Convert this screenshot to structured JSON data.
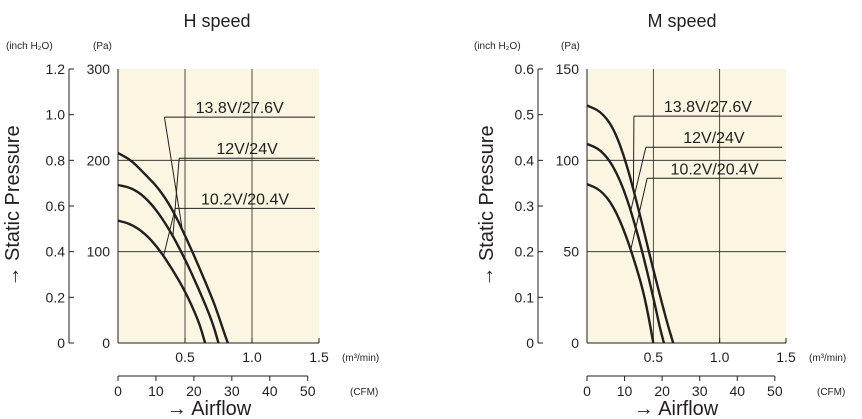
{
  "figure": {
    "ylabel": "Static Pressure",
    "xlabel": "Airflow",
    "arrow_glyph": "→",
    "y_unit_inch": "(inch H₂O)",
    "y_unit_pa": "(Pa)",
    "x_unit_m3": "(m³/min)",
    "x_unit_cfm": "(CFM)"
  },
  "colors": {
    "plot_background": "#faf6e1",
    "line": "#231f20",
    "text": "#231f20"
  },
  "chart_data": [
    {
      "type": "line",
      "title": "H speed",
      "xlabel": "Airflow",
      "ylabel": "Static Pressure",
      "xlim": [
        0,
        1.5
      ],
      "ylim": [
        0,
        300
      ],
      "x_ticks_m3min": [
        "",
        "0.5",
        "1.0",
        "1.5"
      ],
      "x_tick_values_m3min": [
        0,
        0.5,
        1.0,
        1.5
      ],
      "x_ticks_cfm": [
        "0",
        "10",
        "20",
        "30",
        "40",
        "50"
      ],
      "x_tick_values_cfm": [
        0,
        10,
        20,
        30,
        40,
        50
      ],
      "y_ticks_pa": [
        "0",
        "100",
        "200",
        "300"
      ],
      "y_tick_values_pa": [
        0,
        100,
        200,
        300
      ],
      "y_ticks_inch": [
        "0",
        "0.2",
        "0.4",
        "0.6",
        "0.8",
        "1.0",
        "1.2"
      ],
      "y_tick_values_inch": [
        0,
        0.2,
        0.4,
        0.6,
        0.8,
        1.0,
        1.2
      ],
      "grid": {
        "x": [
          0.5,
          1.0
        ],
        "y": [
          100,
          200
        ]
      },
      "series": [
        {
          "name": "13.8V/27.6V",
          "label_y": 255,
          "x": [
            0,
            0.1,
            0.2,
            0.3,
            0.4,
            0.5,
            0.6,
            0.7,
            0.75,
            0.8,
            0.82
          ],
          "y": [
            208,
            200,
            185,
            170,
            148,
            118,
            85,
            50,
            30,
            8,
            0
          ]
        },
        {
          "name": "12V/24V",
          "label_y": 210,
          "x": [
            0,
            0.1,
            0.2,
            0.3,
            0.4,
            0.5,
            0.6,
            0.7,
            0.75
          ],
          "y": [
            173,
            170,
            160,
            143,
            120,
            92,
            60,
            25,
            0
          ]
        },
        {
          "name": "10.2V/20.4V",
          "label_y": 155,
          "x": [
            0,
            0.1,
            0.2,
            0.3,
            0.4,
            0.5,
            0.6,
            0.65
          ],
          "y": [
            134,
            130,
            120,
            104,
            82,
            57,
            25,
            0
          ]
        }
      ]
    },
    {
      "type": "line",
      "title": "M speed",
      "xlabel": "Airflow",
      "ylabel": "Static Pressure",
      "xlim": [
        0,
        1.5
      ],
      "ylim": [
        0,
        150
      ],
      "x_ticks_m3min": [
        "",
        "0.5",
        "1.0",
        "1.5"
      ],
      "x_tick_values_m3min": [
        0,
        0.5,
        1.0,
        1.5
      ],
      "x_ticks_cfm": [
        "0",
        "10",
        "20",
        "30",
        "40",
        "50"
      ],
      "x_tick_values_cfm": [
        0,
        10,
        20,
        30,
        40,
        50
      ],
      "y_ticks_pa": [
        "0",
        "50",
        "100",
        "150"
      ],
      "y_tick_values_pa": [
        0,
        50,
        100,
        150
      ],
      "y_ticks_inch": [
        "0",
        "0.1",
        "0.2",
        "0.3",
        "0.4",
        "0.5",
        "0.6"
      ],
      "y_tick_values_inch": [
        0,
        0.1,
        0.2,
        0.3,
        0.4,
        0.5,
        0.6
      ],
      "grid": {
        "x": [
          0.5,
          1.0
        ],
        "y": [
          50,
          100
        ]
      },
      "series": [
        {
          "name": "13.8V/27.6V",
          "label_y": 128,
          "x": [
            0,
            0.1,
            0.2,
            0.3,
            0.4,
            0.5,
            0.6,
            0.65
          ],
          "y": [
            130,
            127,
            118,
            98,
            70,
            40,
            12,
            0
          ]
        },
        {
          "name": "12V/24V",
          "label_y": 111,
          "x": [
            0,
            0.1,
            0.2,
            0.3,
            0.4,
            0.5,
            0.55,
            0.58
          ],
          "y": [
            109,
            106,
            97,
            80,
            55,
            25,
            8,
            0
          ]
        },
        {
          "name": "10.2V/20.4V",
          "label_y": 94,
          "x": [
            0,
            0.1,
            0.2,
            0.3,
            0.4,
            0.45,
            0.5
          ],
          "y": [
            87,
            84,
            75,
            58,
            35,
            20,
            0
          ]
        }
      ]
    }
  ]
}
